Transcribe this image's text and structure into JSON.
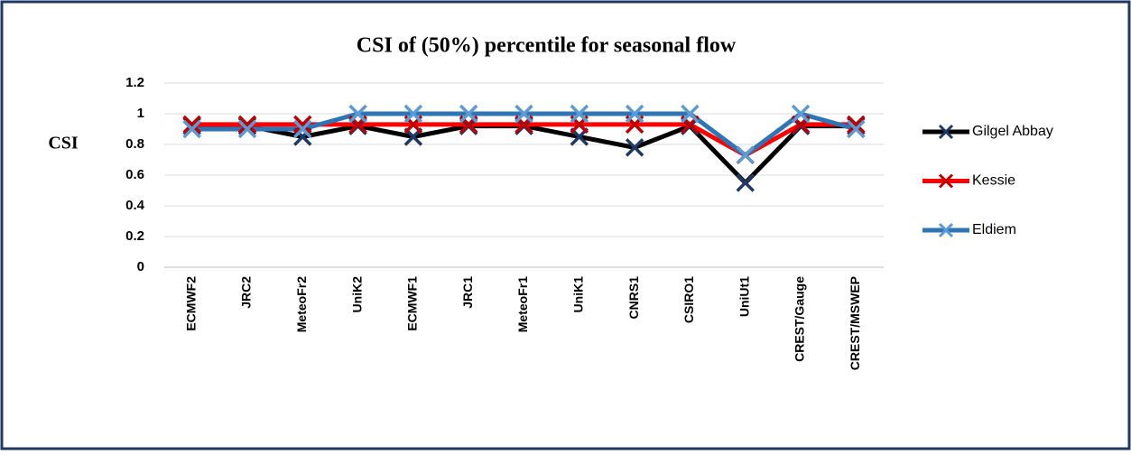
{
  "chart_data": {
    "type": "line",
    "title": "CSI of (50%) percentile for seasonal flow",
    "y_label": "CSI",
    "categories": [
      "ECMWF2",
      "JRC2",
      "MeteoFr2",
      "UniK2",
      "ECMWF1",
      "JRC1",
      "MeteoFr1",
      "UniK1",
      "CNRS1",
      "CSIRO1",
      "UniUt1",
      "CREST/Gauge",
      "CREST/MSWEP"
    ],
    "series": [
      {
        "name": "Gilgel Abbay",
        "color": "#000000",
        "marker_color": "#1f3864",
        "values": [
          0.92,
          0.92,
          0.85,
          0.92,
          0.85,
          0.92,
          0.92,
          0.85,
          0.78,
          0.92,
          0.55,
          0.92,
          0.92
        ]
      },
      {
        "name": "Kessie",
        "color": "#ff0000",
        "marker_color": "#c00000",
        "values": [
          0.93,
          0.93,
          0.93,
          0.93,
          0.93,
          0.93,
          0.93,
          0.93,
          0.93,
          0.93,
          0.73,
          0.93,
          0.93
        ]
      },
      {
        "name": "Eldiem",
        "color": "#2e75b6",
        "marker_color": "#5b9bd5",
        "values": [
          0.9,
          0.9,
          0.9,
          1,
          1,
          1,
          1,
          1,
          1,
          1,
          0.73,
          1,
          0.9
        ]
      }
    ],
    "ylim": [
      0,
      1.2
    ],
    "yticks": [
      0,
      0.2,
      0.4,
      0.6,
      0.8,
      1,
      1.2
    ],
    "grid": true,
    "legend": "right"
  }
}
